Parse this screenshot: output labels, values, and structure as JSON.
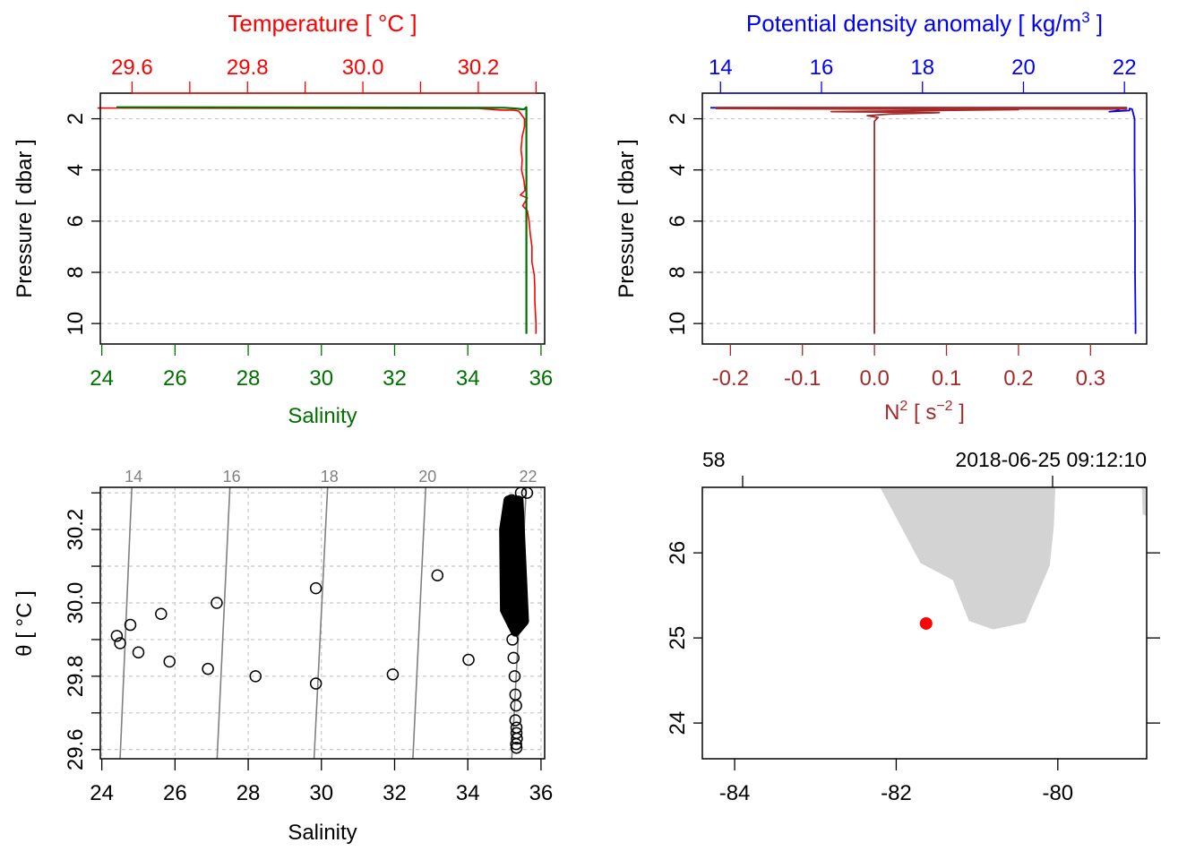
{
  "colors": {
    "temperature": "#ff0000",
    "salinity": "#007000",
    "density": "#0000ff",
    "n2": "#a52a2a",
    "grid": "#c8c8c8",
    "axis": "#000000",
    "isopycnal": "#808080",
    "land": "#d3d3d3",
    "station": "#ff0000"
  },
  "chart_data": [
    {
      "name": "profile-temperature-salinity",
      "type": "line",
      "y_axis": {
        "label": "Pressure [ dbar ]",
        "ylim": [
          10.8,
          1.0
        ],
        "ticks": [
          2,
          4,
          6,
          8,
          10
        ],
        "reversed": true,
        "grid": true
      },
      "top_axis": {
        "label": "Temperature [ °C ]",
        "xlim": [
          29.545,
          30.315
        ],
        "ticks": [
          29.6,
          29.7,
          29.8,
          29.9,
          30.0,
          30.1,
          30.2,
          30.3
        ],
        "tick_labels": [
          "29.6",
          "",
          "29.8",
          "",
          "30.0",
          "",
          "30.2",
          ""
        ]
      },
      "bottom_axis": {
        "label": "Salinity",
        "xlim": [
          23.96,
          36.1
        ],
        "ticks": [
          24,
          26,
          28,
          30,
          32,
          34,
          36
        ],
        "tick_labels": [
          "24",
          "26",
          "28",
          "30",
          "32",
          "34",
          "36"
        ]
      },
      "series": [
        {
          "name": "Temperature",
          "axis": "top",
          "points": [
            [
              29.54,
              1.58
            ],
            [
              30.2,
              1.6
            ],
            [
              30.24,
              1.66
            ],
            [
              30.26,
              1.66
            ],
            [
              30.27,
              1.7
            ],
            [
              30.28,
              2.0
            ],
            [
              30.28,
              2.3
            ],
            [
              30.276,
              2.7
            ],
            [
              30.274,
              3.2
            ],
            [
              30.276,
              3.6
            ],
            [
              30.275,
              4.0
            ],
            [
              30.279,
              4.4
            ],
            [
              30.281,
              4.8
            ],
            [
              30.273,
              4.98
            ],
            [
              30.285,
              5.1
            ],
            [
              30.277,
              5.4
            ],
            [
              30.285,
              5.6
            ],
            [
              30.288,
              6.0
            ],
            [
              30.29,
              6.5
            ],
            [
              30.293,
              7.0
            ],
            [
              30.293,
              7.6
            ],
            [
              30.297,
              8.1
            ],
            [
              30.298,
              8.6
            ],
            [
              30.298,
              9.1
            ],
            [
              30.299,
              9.6
            ],
            [
              30.3,
              10.0
            ],
            [
              30.3,
              10.4
            ]
          ]
        },
        {
          "name": "Salinity",
          "axis": "bottom",
          "points": [
            [
              24.4,
              1.55
            ],
            [
              30.0,
              1.56
            ],
            [
              35.0,
              1.57
            ],
            [
              35.3,
              1.6
            ],
            [
              35.5,
              1.63
            ],
            [
              35.55,
              1.62
            ],
            [
              35.6,
              1.55
            ],
            [
              35.6,
              2.0
            ],
            [
              35.6,
              4.0
            ],
            [
              35.6,
              6.0
            ],
            [
              35.6,
              8.0
            ],
            [
              35.6,
              10.0
            ],
            [
              35.6,
              10.4
            ]
          ]
        }
      ]
    },
    {
      "name": "profile-density-n2",
      "type": "line",
      "y_axis": {
        "label": "Pressure [ dbar ]",
        "ylim": [
          10.8,
          1.0
        ],
        "ticks": [
          2,
          4,
          6,
          8,
          10
        ],
        "reversed": true,
        "grid": true
      },
      "top_axis": {
        "label": "Potential density anomaly [ kg/m",
        "label_sup": "3",
        "label_end": " ]",
        "xlim": [
          13.64,
          22.44
        ],
        "ticks": [
          14,
          16,
          18,
          20,
          22
        ],
        "tick_labels": [
          "14",
          "16",
          "18",
          "20",
          "22"
        ]
      },
      "bottom_axis": {
        "label": "N",
        "label_sup": "2",
        "label_mid": " [ s",
        "label_sup2": "−2",
        "label_end": " ]",
        "xlim": [
          -0.239,
          0.378
        ],
        "ticks": [
          -0.2,
          -0.1,
          0.0,
          0.1,
          0.2,
          0.3
        ],
        "tick_labels": [
          "-0.2",
          "-0.1",
          "0.0",
          "0.1",
          "0.2",
          "0.3"
        ]
      },
      "series": [
        {
          "name": "Potential density anomaly",
          "axis": "top",
          "points": [
            [
              13.8,
              1.57
            ],
            [
              21.0,
              1.58
            ],
            [
              21.8,
              1.6
            ],
            [
              21.9,
              1.68
            ],
            [
              21.7,
              1.72
            ],
            [
              22.1,
              1.68
            ],
            [
              22.1,
              1.6
            ],
            [
              22.15,
              1.62
            ],
            [
              22.2,
              2.0
            ],
            [
              22.2,
              4.0
            ],
            [
              22.21,
              6.0
            ],
            [
              22.21,
              8.0
            ],
            [
              22.22,
              10.0
            ],
            [
              22.22,
              10.4
            ]
          ]
        },
        {
          "name": "N2",
          "axis": "bottom",
          "points": [
            [
              -0.22,
              1.56
            ],
            [
              0.35,
              1.56
            ],
            [
              0.35,
              1.62
            ],
            [
              -0.22,
              1.6
            ],
            [
              0.2,
              1.64
            ],
            [
              -0.06,
              1.72
            ],
            [
              0.09,
              1.76
            ],
            [
              0.02,
              1.82
            ],
            [
              -0.01,
              1.88
            ],
            [
              0.005,
              1.95
            ],
            [
              0.0,
              2.1
            ],
            [
              0.0,
              10.4
            ]
          ]
        }
      ]
    },
    {
      "name": "ts-diagram",
      "type": "scatter",
      "x_axis": {
        "label": "Salinity",
        "xlim": [
          23.96,
          36.1
        ],
        "ticks": [
          24,
          26,
          28,
          30,
          32,
          34,
          36
        ],
        "tick_labels": [
          "24",
          "26",
          "28",
          "30",
          "32",
          "34",
          "36"
        ]
      },
      "y_axis": {
        "label": "θ [ °C ]",
        "ylim": [
          29.575,
          30.315
        ],
        "ticks": [
          29.6,
          29.8,
          30.0,
          30.2
        ],
        "tick_labels": [
          "29.6",
          "29.8",
          "30.0",
          "30.2"
        ],
        "minor_ticks": [
          29.7,
          29.9,
          30.1,
          30.3
        ],
        "grid": true
      },
      "isopycnals": [
        {
          "label": "14",
          "s_bottom": 24.5,
          "s_top": 24.82
        },
        {
          "label": "16",
          "s_bottom": 27.15,
          "s_top": 27.5
        },
        {
          "label": "18",
          "s_bottom": 29.8,
          "s_top": 30.17
        },
        {
          "label": "20",
          "s_bottom": 32.5,
          "s_top": 32.85
        },
        {
          "label": "22",
          "s_bottom": 35.2,
          "s_top": 35.6
        }
      ],
      "points": [
        [
          24.41,
          29.91
        ],
        [
          24.5,
          29.89
        ],
        [
          24.78,
          29.94
        ],
        [
          25.0,
          29.865
        ],
        [
          25.62,
          29.97
        ],
        [
          25.85,
          29.84
        ],
        [
          26.9,
          29.82
        ],
        [
          27.14,
          30.0
        ],
        [
          28.2,
          29.8
        ],
        [
          29.85,
          29.78
        ],
        [
          29.85,
          30.04
        ],
        [
          31.95,
          29.805
        ],
        [
          33.17,
          30.075
        ],
        [
          34.02,
          29.845
        ],
        [
          35.62,
          30.3
        ],
        [
          35.45,
          30.3
        ],
        [
          35.2,
          30.28
        ],
        [
          35.22,
          29.9
        ],
        [
          35.25,
          29.85
        ],
        [
          35.28,
          29.8
        ],
        [
          35.3,
          29.75
        ],
        [
          35.32,
          29.72
        ],
        [
          35.3,
          29.68
        ],
        [
          35.33,
          29.66
        ],
        [
          35.33,
          29.645
        ],
        [
          35.34,
          29.63
        ],
        [
          35.32,
          29.615
        ],
        [
          35.33,
          29.605
        ]
      ],
      "dense_band": [
        [
          35.1,
          30.28
        ],
        [
          35.4,
          30.28
        ],
        [
          35.55,
          29.95
        ],
        [
          35.3,
          29.92
        ],
        [
          35.0,
          29.98
        ],
        [
          34.98,
          30.2
        ]
      ]
    },
    {
      "name": "station-map",
      "type": "map",
      "top_labels": {
        "left": "58",
        "right": "2018-06-25 09:12:10"
      },
      "lon_axis": {
        "xlim": [
          -84.4,
          -78.9
        ],
        "ticks": [
          -84,
          -82,
          -80
        ],
        "tick_labels": [
          "-84",
          "-82",
          "-80"
        ]
      },
      "lat_axis": {
        "ylim": [
          23.58,
          26.77
        ],
        "ticks": [
          24,
          25,
          26
        ],
        "tick_labels": [
          "24",
          "25",
          "26"
        ]
      },
      "station": {
        "lon": -81.63,
        "lat": 25.17
      },
      "land": [
        [
          [
            -82.2,
            26.77
          ],
          [
            -81.7,
            25.88
          ],
          [
            -81.3,
            25.68
          ],
          [
            -81.1,
            25.2
          ],
          [
            -80.8,
            25.1
          ],
          [
            -80.4,
            25.18
          ],
          [
            -80.1,
            25.85
          ],
          [
            -80.05,
            26.3
          ],
          [
            -80.03,
            26.77
          ]
        ],
        [
          [
            -78.96,
            26.77
          ],
          [
            -78.85,
            26.77
          ],
          [
            -78.85,
            26.42
          ],
          [
            -78.95,
            26.45
          ]
        ]
      ]
    }
  ]
}
